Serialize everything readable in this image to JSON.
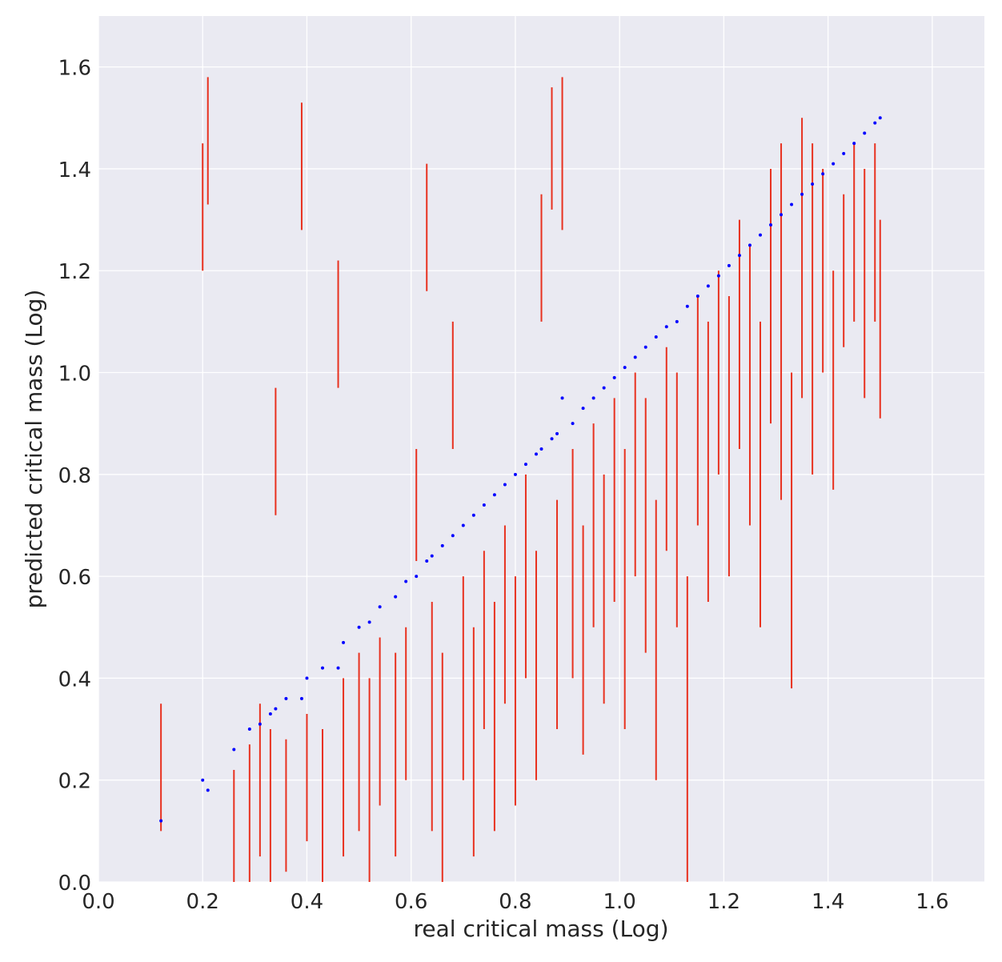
{
  "chart_data": {
    "type": "scatter",
    "xlabel": "real critical mass (Log)",
    "ylabel": "predicted critical mass (Log)",
    "xlim": [
      0,
      1.7
    ],
    "ylim": [
      0,
      1.7
    ],
    "xticks": [
      {
        "value": 0,
        "label": "0.0"
      },
      0.2,
      0.4,
      0.6,
      0.8,
      {
        "value": 1,
        "label": "1.0"
      },
      1.2,
      1.4,
      1.6
    ],
    "yticks": [
      {
        "value": 0,
        "label": "0.0"
      },
      0.2,
      0.4,
      0.6,
      0.8,
      {
        "value": 1,
        "label": "1.0"
      },
      1.2,
      1.4,
      1.6
    ],
    "grid": true,
    "x": [
      0.12,
      0.2,
      0.21,
      0.26,
      0.29,
      0.31,
      0.33,
      0.34,
      0.36,
      0.39,
      0.4,
      0.43,
      0.46,
      0.47,
      0.5,
      0.52,
      0.54,
      0.57,
      0.59,
      0.61,
      0.63,
      0.64,
      0.66,
      0.68,
      0.7,
      0.72,
      0.74,
      0.76,
      0.78,
      0.8,
      0.82,
      0.84,
      0.85,
      0.87,
      0.88,
      0.89,
      0.91,
      0.93,
      0.95,
      0.97,
      0.99,
      1.01,
      1.03,
      1.05,
      1.07,
      1.09,
      1.11,
      1.13,
      1.15,
      1.17,
      1.19,
      1.21,
      1.23,
      1.25,
      1.27,
      1.29,
      1.31,
      1.33,
      1.35,
      1.37,
      1.39,
      1.41,
      1.43,
      1.45,
      1.47,
      1.49,
      1.5
    ],
    "values": [
      0.12,
      0.2,
      0.18,
      0.26,
      0.3,
      0.31,
      0.33,
      0.34,
      0.36,
      0.36,
      0.4,
      0.42,
      0.42,
      0.47,
      0.5,
      0.51,
      0.54,
      0.56,
      0.59,
      0.6,
      0.63,
      0.64,
      0.66,
      0.68,
      0.7,
      0.72,
      0.74,
      0.76,
      0.78,
      0.8,
      0.82,
      0.84,
      0.85,
      0.87,
      0.88,
      0.95,
      0.9,
      0.93,
      0.95,
      0.97,
      0.99,
      1.01,
      1.03,
      1.05,
      1.07,
      1.09,
      1.1,
      1.13,
      1.15,
      1.17,
      1.19,
      1.21,
      1.23,
      1.25,
      1.27,
      1.29,
      1.31,
      1.33,
      1.35,
      1.37,
      1.39,
      1.41,
      1.43,
      1.45,
      1.47,
      1.49,
      1.5
    ],
    "color": "#0000ff",
    "interval_color": "#e8311f",
    "interval_low": [
      0.1,
      1.2,
      1.33,
      0.0,
      0.0,
      0.05,
      0.0,
      0.72,
      0.02,
      1.28,
      0.08,
      0.0,
      0.97,
      0.05,
      0.1,
      0.0,
      0.15,
      0.05,
      0.2,
      0.63,
      1.16,
      0.1,
      0.0,
      0.85,
      0.2,
      0.05,
      0.3,
      0.1,
      0.35,
      0.15,
      0.4,
      0.2,
      1.1,
      1.32,
      0.3,
      1.28,
      0.4,
      0.25,
      0.5,
      0.35,
      0.55,
      0.3,
      0.6,
      0.45,
      0.2,
      0.65,
      0.5,
      0.0,
      0.7,
      0.55,
      0.8,
      0.6,
      0.85,
      0.7,
      0.5,
      0.9,
      0.75,
      0.38,
      0.95,
      0.8,
      1.0,
      0.77,
      1.05,
      1.1,
      0.95,
      1.1,
      0.91
    ],
    "interval_high": [
      0.35,
      1.45,
      1.58,
      0.22,
      0.27,
      0.35,
      0.3,
      0.97,
      0.28,
      1.53,
      0.33,
      0.3,
      1.22,
      0.4,
      0.45,
      0.4,
      0.48,
      0.45,
      0.5,
      0.85,
      1.41,
      0.55,
      0.45,
      1.1,
      0.6,
      0.5,
      0.65,
      0.55,
      0.7,
      0.6,
      0.8,
      0.65,
      1.35,
      1.56,
      0.75,
      1.58,
      0.85,
      0.7,
      0.9,
      0.8,
      0.95,
      0.85,
      1.0,
      0.95,
      0.75,
      1.05,
      1.0,
      0.6,
      1.15,
      1.1,
      1.2,
      1.15,
      1.3,
      1.25,
      1.1,
      1.4,
      1.45,
      1.0,
      1.5,
      1.45,
      1.4,
      1.2,
      1.35,
      1.45,
      1.4,
      1.45,
      1.3
    ]
  }
}
